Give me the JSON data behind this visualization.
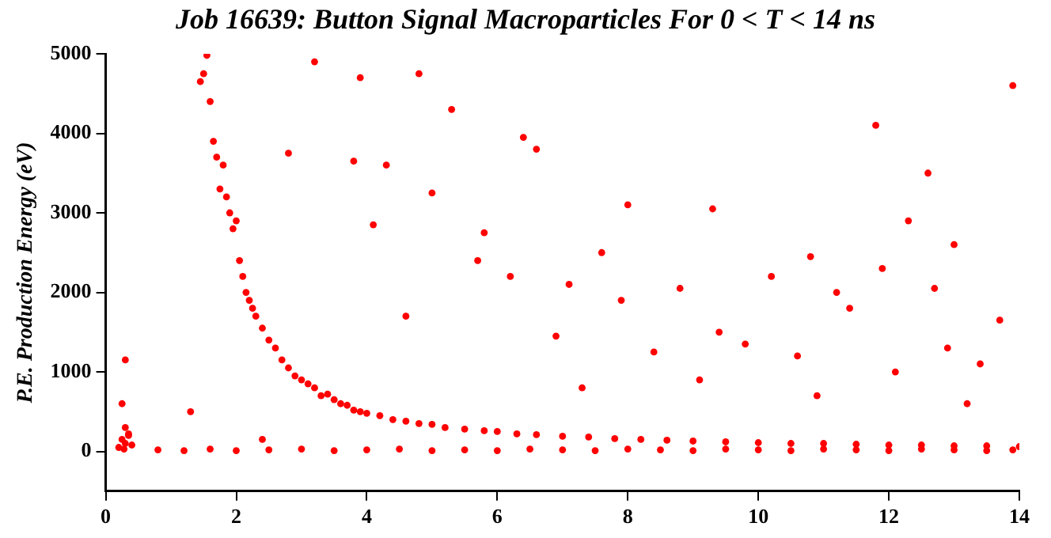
{
  "chart_data": {
    "type": "scatter",
    "title": "Job 16639: Button Signal Macroparticles For 0 < T < 14 ns",
    "ylabel": "P.E. Production Energy (eV)",
    "x": [
      0.2,
      0.25,
      0.3,
      0.3,
      0.35,
      0.4,
      0.25,
      0.3,
      0.35,
      0.28,
      1.45,
      1.5,
      1.55,
      1.6,
      1.65,
      1.7,
      1.75,
      1.8,
      1.85,
      1.9,
      1.95,
      2.0,
      2.05,
      2.1,
      2.15,
      2.2,
      2.25,
      2.3,
      2.4,
      2.5,
      2.6,
      2.7,
      2.8,
      2.9,
      3.0,
      3.1,
      3.2,
      3.3,
      3.4,
      3.5,
      3.6,
      3.7,
      3.8,
      3.9,
      4.0,
      4.2,
      4.4,
      4.6,
      4.8,
      5.0,
      5.2,
      5.5,
      5.8,
      6.0,
      6.3,
      6.6,
      7.0,
      7.4,
      7.8,
      8.2,
      8.6,
      9.0,
      9.5,
      10.0,
      10.5,
      11.0,
      11.5,
      12.0,
      12.5,
      13.0,
      13.5,
      14.0,
      0.8,
      1.2,
      1.6,
      2.0,
      2.5,
      3.0,
      3.5,
      4.0,
      4.5,
      5.0,
      5.5,
      6.0,
      6.5,
      7.0,
      7.5,
      8.0,
      8.5,
      9.0,
      9.5,
      10.0,
      10.5,
      11.0,
      11.5,
      12.0,
      12.5,
      13.0,
      13.5,
      13.9,
      3.2,
      3.9,
      4.8,
      5.3,
      6.4,
      6.6,
      7.6,
      8.0,
      9.3,
      10.8,
      11.8,
      12.3,
      12.6,
      13.0,
      13.9,
      3.8,
      4.3,
      5.0,
      5.8,
      6.2,
      7.1,
      7.9,
      8.8,
      9.4,
      10.2,
      11.2,
      11.9,
      12.7,
      13.4,
      2.8,
      4.6,
      5.7,
      6.9,
      8.4,
      9.8,
      10.6,
      11.4,
      12.9,
      13.7,
      1.3,
      2.4,
      4.1,
      7.3,
      9.1,
      10.9,
      12.1,
      13.2
    ],
    "values": [
      50,
      150,
      300,
      100,
      200,
      80,
      600,
      1150,
      220,
      30,
      4650,
      4750,
      4980,
      4400,
      3900,
      3700,
      3300,
      3600,
      3200,
      3000,
      2800,
      2900,
      2400,
      2200,
      2000,
      1900,
      1800,
      1700,
      1550,
      1400,
      1300,
      1150,
      1050,
      950,
      900,
      850,
      800,
      700,
      720,
      650,
      600,
      580,
      520,
      500,
      480,
      450,
      400,
      380,
      350,
      340,
      300,
      280,
      260,
      250,
      220,
      210,
      190,
      180,
      160,
      150,
      140,
      130,
      120,
      110,
      100,
      100,
      90,
      80,
      80,
      70,
      70,
      60,
      20,
      10,
      30,
      10,
      20,
      30,
      10,
      20,
      30,
      10,
      20,
      10,
      30,
      20,
      10,
      30,
      20,
      10,
      30,
      20,
      10,
      30,
      20,
      10,
      30,
      20,
      10,
      20,
      4900,
      4700,
      4750,
      4300,
      3950,
      3800,
      2500,
      3100,
      3050,
      2450,
      4100,
      2900,
      3500,
      2600,
      4600,
      3650,
      3600,
      3250,
      2750,
      2200,
      2100,
      1900,
      2050,
      1500,
      2200,
      2000,
      2300,
      2050,
      1100,
      3750,
      1700,
      2400,
      1450,
      1250,
      1350,
      1200,
      1800,
      1300,
      1650,
      500,
      150,
      2850,
      800,
      900,
      700,
      1000,
      600
    ],
    "color": "#ff0000",
    "marker": "circle",
    "xlim": [
      0,
      14
    ],
    "xticks": [
      0,
      2,
      4,
      6,
      8,
      10,
      12,
      14
    ],
    "ylim": [
      -500,
      5000
    ],
    "yticks": [
      0,
      1000,
      2000,
      3000,
      4000,
      5000
    ],
    "grid": false,
    "legend": false
  }
}
